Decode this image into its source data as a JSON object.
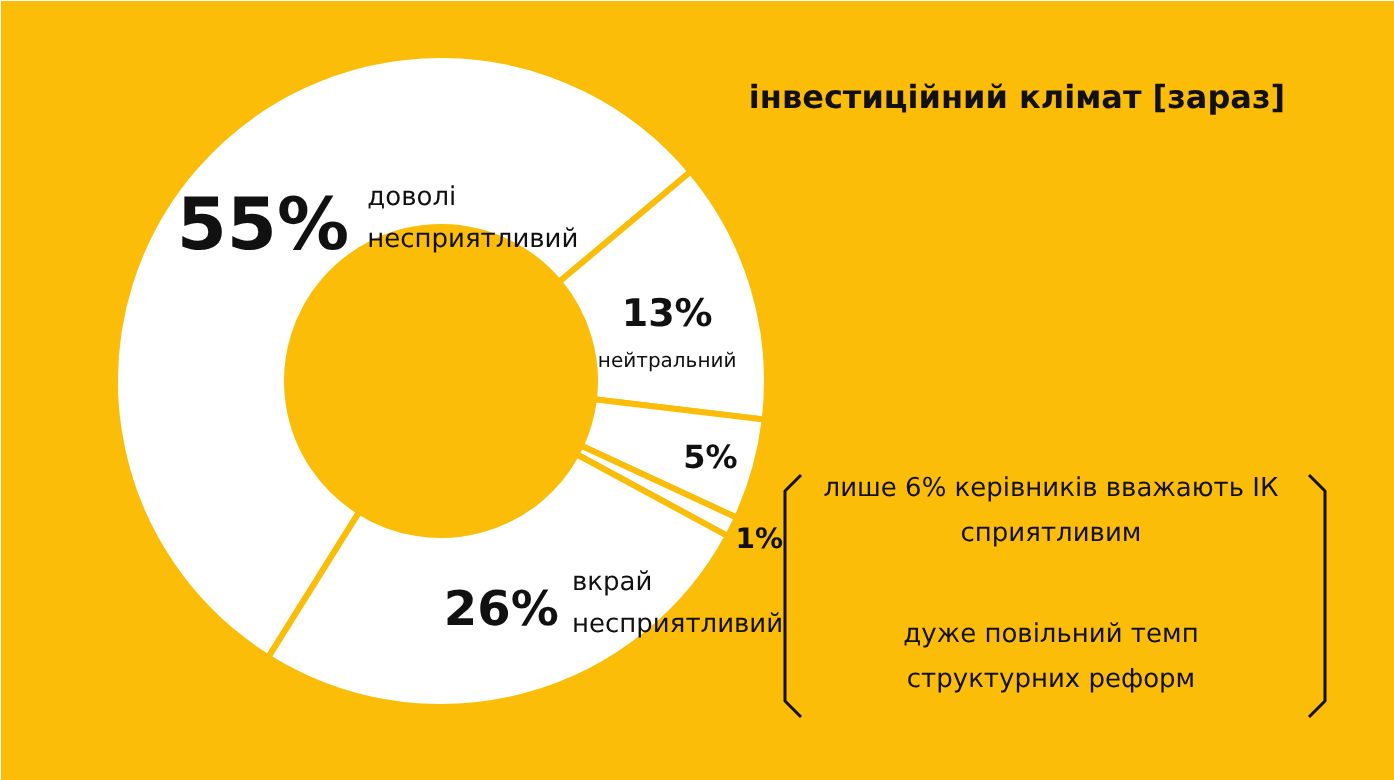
{
  "chart_data": {
    "type": "donut",
    "title": "інвестиційний клімат [зараз]",
    "categories": [
      "доволі несприятливий",
      "нейтральний",
      null,
      null,
      "вкрай несприятливий"
    ],
    "values": [
      55,
      13,
      5,
      1,
      26
    ],
    "colors": [
      "#ffffff",
      "#ffffff",
      "#ffffff",
      "#ffffff",
      "#ffffff"
    ],
    "value_labels": [
      "55%",
      "13%",
      "5%",
      "1%",
      "26%"
    ],
    "annotations": [
      "лише 6% керівників вважають ІК\nсприятливим",
      "дуже повільний темп\nструктурних реформ"
    ]
  }
}
